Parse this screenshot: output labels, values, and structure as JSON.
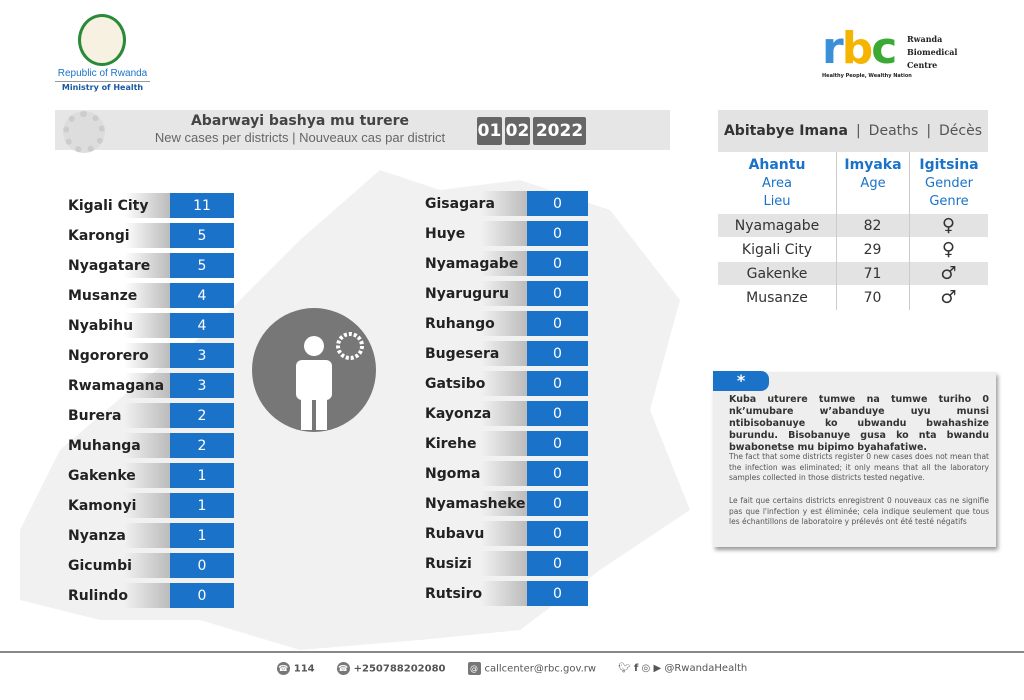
{
  "header": {
    "gov_line1": "Republic of Rwanda",
    "gov_line2": "Ministry of Health",
    "rbc_logo": "rbc",
    "rbc_name": [
      "Rwanda",
      "Biomedical",
      "Centre"
    ],
    "rbc_tagline": "Healthy People, Wealthy Nation"
  },
  "cases": {
    "title_rw": "Abarwayi bashya mu turere",
    "title_en_fr": "New cases per districts  |  Nouveaux cas par district",
    "date": {
      "day": "01",
      "month": "02",
      "year": "2022"
    },
    "left": [
      {
        "district": "Kigali City",
        "count": "11"
      },
      {
        "district": "Karongi",
        "count": "5"
      },
      {
        "district": "Nyagatare",
        "count": "5"
      },
      {
        "district": "Musanze",
        "count": "4"
      },
      {
        "district": "Nyabihu",
        "count": "4"
      },
      {
        "district": "Ngororero",
        "count": "3"
      },
      {
        "district": "Rwamagana",
        "count": "3"
      },
      {
        "district": "Burera",
        "count": "2"
      },
      {
        "district": "Muhanga",
        "count": "2"
      },
      {
        "district": "Gakenke",
        "count": "1"
      },
      {
        "district": "Kamonyi",
        "count": "1"
      },
      {
        "district": "Nyanza",
        "count": "1"
      },
      {
        "district": "Gicumbi",
        "count": "0"
      },
      {
        "district": "Rulindo",
        "count": "0"
      }
    ],
    "right": [
      {
        "district": "Gisagara",
        "count": "0"
      },
      {
        "district": "Huye",
        "count": "0"
      },
      {
        "district": "Nyamagabe",
        "count": "0"
      },
      {
        "district": "Nyaruguru",
        "count": "0"
      },
      {
        "district": "Ruhango",
        "count": "0"
      },
      {
        "district": "Bugesera",
        "count": "0"
      },
      {
        "district": "Gatsibo",
        "count": "0"
      },
      {
        "district": "Kayonza",
        "count": "0"
      },
      {
        "district": "Kirehe",
        "count": "0"
      },
      {
        "district": "Ngoma",
        "count": "0"
      },
      {
        "district": "Nyamasheke",
        "count": "0"
      },
      {
        "district": "Rubavu",
        "count": "0"
      },
      {
        "district": "Rusizi",
        "count": "0"
      },
      {
        "district": "Rutsiro",
        "count": "0"
      }
    ]
  },
  "deaths": {
    "title_rw": "Abitabye Imana",
    "title_en": "Deaths",
    "title_fr": "Décès",
    "columns": [
      {
        "rw": "Ahantu",
        "en": "Area",
        "fr": "Lieu"
      },
      {
        "rw": "Imyaka",
        "en": "Age",
        "fr": ""
      },
      {
        "rw": "Igitsina",
        "en": "Gender",
        "fr": "Genre"
      }
    ],
    "rows": [
      {
        "area": "Nyamagabe",
        "age": "82",
        "gender": "♀"
      },
      {
        "area": "Kigali City",
        "age": "29",
        "gender": "♀"
      },
      {
        "area": "Gakenke",
        "age": "71",
        "gender": "♂"
      },
      {
        "area": "Musanze",
        "age": "70",
        "gender": "♂"
      }
    ]
  },
  "note": {
    "marker": "*",
    "rw": "Kuba uturere tumwe na tumwe turiho 0 nk’umubare w’abanduye  uyu munsi ntibisobanuye ko ubwandu bwahashize burundu. Bisobanuye gusa ko nta bwandu bwabonetse mu bipimo byahafatiwe.",
    "en": "The fact that some districts register 0 new cases does not mean that the infection was eliminated; it only means that all the laboratory samples collected in those districts tested negative.",
    "fr": "Le fait que certains districts enregistrent 0 nouveaux cas ne signifie pas que l'infection y est éliminée; cela indique seulement que tous les échantillons de laboratoire y prélevés ont été testé négatifs"
  },
  "footer": {
    "hotline": "114",
    "phone": "+250788202080",
    "email": "callcenter@rbc.gov.rw",
    "social": "@RwandaHealth"
  },
  "colors": {
    "accent": "#1a73c8",
    "gray": "#777777"
  }
}
